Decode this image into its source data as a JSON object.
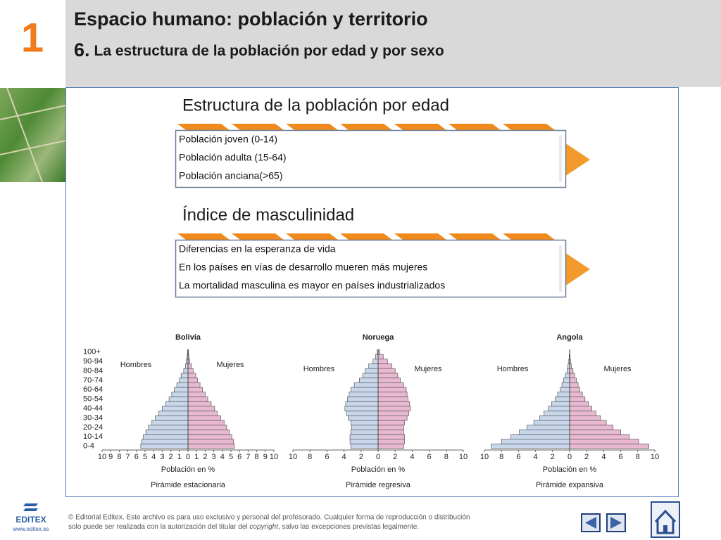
{
  "header": {
    "number": "1",
    "title": "Espacio humano: población y territorio",
    "subtitle_number": "6.",
    "subtitle": "La estructura de la población por edad y por sexo"
  },
  "sections": [
    {
      "heading": "Estructura de la población por edad",
      "items": [
        "Población joven (0-14)",
        "Población adulta (15-64)",
        "Población anciana(>65)"
      ]
    },
    {
      "heading": "Índice de masculinidad",
      "items": [
        "Diferencias en la esperanza de vida",
        "En los países en vías de desarrollo mueren más mujeres",
        "La mortalidad masculina es mayor en países industrializados"
      ]
    }
  ],
  "pyramids": {
    "categories": [
      "0-4",
      null,
      "10-14",
      null,
      "20-24",
      null,
      "30-34",
      null,
      "40-44",
      null,
      "50-54",
      null,
      "60-64",
      null,
      "70-74",
      null,
      "80-84",
      null,
      "90-94",
      null,
      "100+"
    ],
    "charts": [
      {
        "type": "pyramid",
        "title": "Bolivia",
        "xlabel": "Población en %",
        "caption": "Pirámide estacionaria",
        "xlim": [
          0,
          10
        ],
        "xticks": [
          0,
          1,
          2,
          3,
          4,
          5,
          6,
          7,
          8,
          9,
          10
        ],
        "series": [
          {
            "name": "Hombres",
            "color": "#c9d7ec",
            "values": [
              5.5,
              5.4,
              5.2,
              4.9,
              4.6,
              4.2,
              3.8,
              3.4,
              3.0,
              2.6,
              2.2,
              1.9,
              1.6,
              1.3,
              1.0,
              0.8,
              0.5,
              0.3,
              0.2,
              0.1,
              0.05
            ]
          },
          {
            "name": "Mujeres",
            "color": "#e9b9d2",
            "values": [
              5.4,
              5.3,
              5.1,
              4.8,
              4.5,
              4.2,
              3.8,
              3.4,
              3.1,
              2.7,
              2.3,
              2.0,
              1.7,
              1.4,
              1.1,
              0.9,
              0.6,
              0.4,
              0.2,
              0.1,
              0.05
            ]
          }
        ]
      },
      {
        "type": "pyramid",
        "title": "Noruega",
        "xlabel": "Población en %",
        "caption": "Pirámide regresiva",
        "xlim": [
          0,
          10
        ],
        "xticks": [
          0,
          2,
          4,
          6,
          8,
          10
        ],
        "series": [
          {
            "name": "Hombres",
            "color": "#c9d7ec",
            "values": [
              3.2,
              3.3,
              3.3,
              3.2,
              3.1,
              3.2,
              3.5,
              3.7,
              3.9,
              3.8,
              3.6,
              3.4,
              3.2,
              2.8,
              2.2,
              1.8,
              1.5,
              1.1,
              0.6,
              0.3,
              0.1
            ]
          },
          {
            "name": "Mujeres",
            "color": "#e9b9d2",
            "values": [
              3.0,
              3.1,
              3.1,
              3.0,
              3.0,
              3.1,
              3.4,
              3.6,
              3.8,
              3.7,
              3.5,
              3.4,
              3.3,
              3.0,
              2.6,
              2.3,
              2.0,
              1.6,
              1.1,
              0.6,
              0.2
            ]
          }
        ]
      },
      {
        "type": "pyramid",
        "title": "Angola",
        "xlabel": "Población en %",
        "caption": "Pirámide expansiva",
        "xlim": [
          0,
          10
        ],
        "xticks": [
          0,
          2,
          4,
          6,
          8,
          10
        ],
        "series": [
          {
            "name": "Hombres",
            "color": "#c9d7ec",
            "values": [
              9.2,
              8.0,
              6.9,
              5.9,
              5.0,
              4.2,
              3.5,
              3.0,
              2.5,
              2.1,
              1.7,
              1.4,
              1.1,
              0.9,
              0.7,
              0.5,
              0.3,
              0.2,
              0.1,
              0.05,
              0.02
            ]
          },
          {
            "name": "Mujeres",
            "color": "#e9b9d2",
            "values": [
              9.3,
              8.1,
              7.0,
              6.0,
              5.1,
              4.3,
              3.6,
              3.1,
              2.6,
              2.2,
              1.8,
              1.5,
              1.2,
              1.0,
              0.8,
              0.6,
              0.4,
              0.2,
              0.1,
              0.05,
              0.02
            ]
          }
        ]
      }
    ]
  },
  "footer": {
    "logo": "EDITEX",
    "url": "www.editex.es",
    "copyright_line1": "© Editorial Editex. Este archivo es para uso exclusivo y personal del profesorado. Cualquier forma de reproducción o distribución",
    "copyright_line2_a": "solo puede ser realizada con la autorización del titular del ",
    "copyright_line2_b": "copyright",
    "copyright_line2_c": ", salvo las excepciones previstas legalmente."
  }
}
